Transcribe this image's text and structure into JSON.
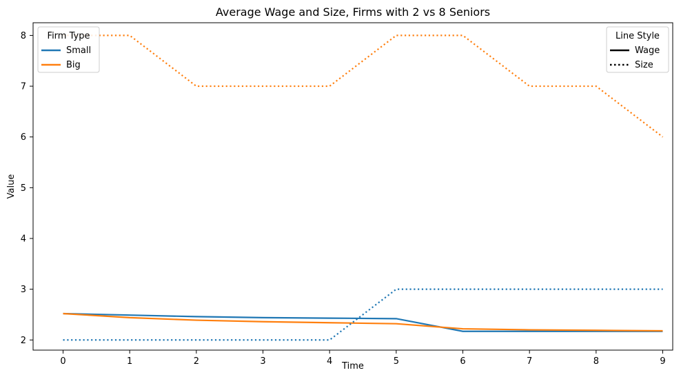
{
  "chart_data": {
    "type": "line",
    "title": "Average Wage and Size, Firms with 2 vs 8 Seniors",
    "xlabel": "Time",
    "ylabel": "Value",
    "x": [
      0,
      1,
      2,
      3,
      4,
      5,
      6,
      7,
      8,
      9
    ],
    "xlim": [
      -0.45,
      9.15
    ],
    "ylim": [
      1.8,
      8.25
    ],
    "xticks": [
      "0",
      "1",
      "2",
      "3",
      "4",
      "5",
      "6",
      "7",
      "8",
      "9"
    ],
    "yticks": [
      "2",
      "3",
      "4",
      "5",
      "6",
      "7",
      "8"
    ],
    "grid": false,
    "series": [
      {
        "name": "Small",
        "metric": "Wage",
        "color": "#1f77b4",
        "style": "solid",
        "values": [
          2.52,
          2.49,
          2.46,
          2.44,
          2.43,
          2.42,
          2.17,
          2.17,
          2.17,
          2.17
        ]
      },
      {
        "name": "Big",
        "metric": "Wage",
        "color": "#ff7f0e",
        "style": "solid",
        "values": [
          2.52,
          2.44,
          2.39,
          2.36,
          2.34,
          2.32,
          2.22,
          2.2,
          2.19,
          2.18
        ]
      },
      {
        "name": "Small",
        "metric": "Size",
        "color": "#1f77b4",
        "style": "dotted",
        "values": [
          2,
          2,
          2,
          2,
          2,
          3,
          3,
          3,
          3,
          3
        ]
      },
      {
        "name": "Big",
        "metric": "Size",
        "color": "#ff7f0e",
        "style": "dotted",
        "values": [
          8,
          8,
          7,
          7,
          7,
          8,
          8,
          7,
          7,
          6
        ]
      }
    ],
    "legends": [
      {
        "title": "Firm Type",
        "placement": "upper-left",
        "entries": [
          {
            "label": "Small",
            "color": "#1f77b4",
            "style": "solid"
          },
          {
            "label": "Big",
            "color": "#ff7f0e",
            "style": "solid"
          }
        ]
      },
      {
        "title": "Line Style",
        "placement": "upper-right",
        "entries": [
          {
            "label": "Wage",
            "color": "#000000",
            "style": "solid"
          },
          {
            "label": "Size",
            "color": "#000000",
            "style": "dotted"
          }
        ]
      }
    ]
  }
}
